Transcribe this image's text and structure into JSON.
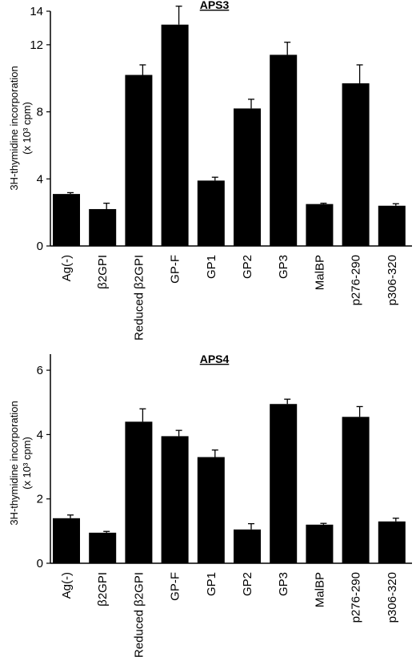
{
  "chart_data": [
    {
      "type": "bar",
      "title": "APS3",
      "ylabel_line1": "3H-thymidine incorporation",
      "ylabel_line2": "(x 10³ cpm)",
      "ylim": [
        0,
        14
      ],
      "yticks": [
        0,
        4,
        8,
        12,
        14
      ],
      "categories": [
        "Ag(-)",
        "β2GPI",
        "Reduced β2GPI",
        "GP-F",
        "GP1",
        "GP2",
        "GP3",
        "MalBP",
        "p276-290",
        "p306-320"
      ],
      "values": [
        3.1,
        2.2,
        10.2,
        13.2,
        3.9,
        8.2,
        11.4,
        2.5,
        9.7,
        2.4
      ],
      "errors": [
        0.08,
        0.35,
        0.6,
        1.1,
        0.2,
        0.55,
        0.75,
        0.05,
        1.1,
        0.12
      ],
      "bar_color": "#000000"
    },
    {
      "type": "bar",
      "title": "APS4",
      "ylabel_line1": "3H-thymidine incorporation",
      "ylabel_line2": "(x 10³ cpm)",
      "ylim": [
        0,
        6.5
      ],
      "yticks": [
        0,
        2,
        4,
        6
      ],
      "categories": [
        "Ag(-)",
        "β2GPI",
        "Reduced β2GPI",
        "GP-F",
        "GP1",
        "GP2",
        "GP3",
        "MalBP",
        "p276-290",
        "p306-320"
      ],
      "values": [
        1.4,
        0.95,
        4.4,
        3.95,
        3.3,
        1.05,
        4.95,
        1.2,
        4.55,
        1.3
      ],
      "errors": [
        0.1,
        0.04,
        0.4,
        0.18,
        0.22,
        0.18,
        0.15,
        0.04,
        0.32,
        0.1
      ],
      "bar_color": "#000000"
    }
  ]
}
